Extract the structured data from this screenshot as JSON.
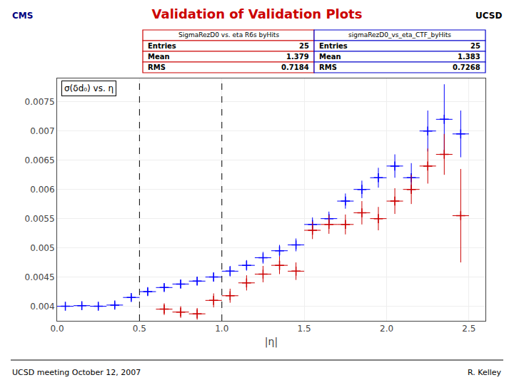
{
  "chart_data": {
    "type": "scatter",
    "title": "Validation of Validation Plots",
    "title_color": "#cc0000",
    "xlabel": "|η|",
    "plot_label": "σ(δd₀) vs. η",
    "xlim": [
      0,
      2.6
    ],
    "ylim": [
      0.00375,
      0.0079
    ],
    "xticks": [
      {
        "value": 0,
        "label": "0.0"
      },
      0.5,
      {
        "value": 1.0,
        "label": "1.0"
      },
      1.5,
      {
        "value": 2.0,
        "label": "2.0"
      },
      2.5
    ],
    "yticks": [
      0.004,
      0.0045,
      0.005,
      0.0055,
      0.006,
      0.0065,
      0.007,
      0.0075
    ],
    "grid": true,
    "series": [
      {
        "color": "blue",
        "marker": "plus",
        "x": [
          0.05,
          0.15,
          0.25,
          0.35,
          0.45,
          0.55,
          0.65,
          0.75,
          0.85,
          0.95,
          1.05,
          1.15,
          1.25,
          1.35,
          1.45,
          1.55,
          1.65,
          1.75,
          1.85,
          1.95,
          2.05,
          2.15,
          2.25,
          2.35,
          2.45
        ],
        "values": [
          0.004,
          0.00401,
          0.004,
          0.00402,
          0.00415,
          0.00425,
          0.00432,
          0.00438,
          0.00443,
          0.0045,
          0.0046,
          0.0047,
          0.00483,
          0.00495,
          0.00505,
          0.0054,
          0.0055,
          0.0058,
          0.006,
          0.0062,
          0.0064,
          0.0062,
          0.007,
          0.0072,
          0.00695
        ],
        "xerr": [
          0.05,
          0.05,
          0.05,
          0.05,
          0.05,
          0.05,
          0.05,
          0.05,
          0.05,
          0.05,
          0.05,
          0.05,
          0.05,
          0.05,
          0.05,
          0.05,
          0.05,
          0.05,
          0.05,
          0.05,
          0.05,
          0.05,
          0.05,
          0.05,
          0.05
        ],
        "yerr": [
          5e-05,
          5e-05,
          5e-05,
          5e-05,
          5e-05,
          6e-05,
          6e-05,
          7e-05,
          7e-05,
          8e-05,
          9e-05,
          9e-05,
          0.0001,
          0.0001,
          0.00011,
          0.00012,
          0.00012,
          0.00013,
          0.00015,
          0.00017,
          0.0002,
          0.00025,
          0.00035,
          0.0006,
          0.0004
        ]
      },
      {
        "color": "#cc0000",
        "marker": "plus",
        "x": [
          0.65,
          0.75,
          0.85,
          0.95,
          1.05,
          1.15,
          1.25,
          1.35,
          1.45,
          1.55,
          1.65,
          1.75,
          1.85,
          1.95,
          2.05,
          2.15,
          2.25,
          2.35,
          2.45
        ],
        "values": [
          0.00395,
          0.0039,
          0.00387,
          0.0041,
          0.00418,
          0.0044,
          0.00455,
          0.0047,
          0.0046,
          0.0053,
          0.0054,
          0.0054,
          0.0056,
          0.0055,
          0.0058,
          0.006,
          0.0064,
          0.0066,
          0.00555
        ],
        "xerr": [
          0.05,
          0.05,
          0.05,
          0.05,
          0.05,
          0.05,
          0.05,
          0.05,
          0.05,
          0.05,
          0.05,
          0.05,
          0.05,
          0.05,
          0.05,
          0.05,
          0.05,
          0.05,
          0.05
        ],
        "yerr": [
          0.0001,
          0.0001,
          0.0001,
          0.00012,
          0.00012,
          0.00013,
          0.00014,
          0.00015,
          0.00015,
          0.00015,
          0.00016,
          0.00017,
          0.0002,
          0.0002,
          0.00022,
          0.00025,
          0.0003,
          0.00035,
          0.0008
        ]
      }
    ],
    "vlines": [
      0.5,
      1.0
    ],
    "stats": [
      {
        "name": "SigmaRezD0 vs. eta R6s byHits",
        "color": "#cc0000",
        "rows": [
          {
            "label": "Entries",
            "value": 25
          },
          {
            "label": "Mean",
            "value": 1.379
          },
          {
            "label": "RMS",
            "value": 0.7184
          }
        ]
      },
      {
        "name": "sigmaRezD0_vs_eta_CTF_byHits",
        "color": "#0000cc",
        "rows": [
          {
            "label": "Entries",
            "value": 25
          },
          {
            "label": "Mean",
            "value": 1.383
          },
          {
            "label": "RMS",
            "value": 0.7268
          }
        ]
      }
    ],
    "footer": {
      "left": "UCSD meeting October 12, 2007",
      "right": "R. Kelley"
    },
    "logos": [
      "CMS",
      "UCSD"
    ]
  }
}
